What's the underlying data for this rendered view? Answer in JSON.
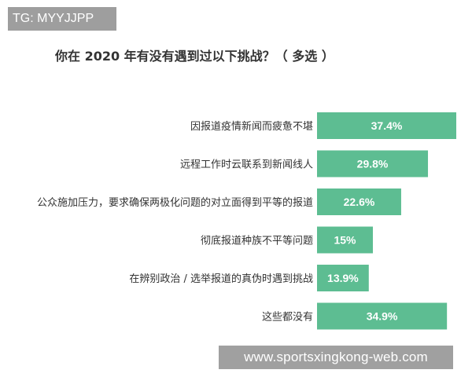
{
  "tag": "TG: MYYJJPP",
  "watermark": "www.sportsxingkong-web.com",
  "colors": {
    "bar": "#5dbd92",
    "label": "#333333",
    "value": "#ffffff"
  },
  "chart_data": {
    "type": "bar",
    "orientation": "horizontal",
    "title": "你在 2020 年有没有遇到过以下挑战？（ 多选 ）",
    "categories": [
      "因报道疫情新闻而疲惫不堪",
      "远程工作时云联系到新闻线人",
      "公众施加压力，要求确保两极化问题的对立面得到平等的报道",
      "彻底报道种族不平等问题",
      "在辨别政治 / 选举报道的真伪时遇到挑战",
      "这些都没有"
    ],
    "values": [
      37.4,
      29.8,
      22.6,
      15,
      13.9,
      34.9
    ],
    "value_labels": [
      "37.4%",
      "29.8%",
      "22.6%",
      "15%",
      "13.9%",
      "34.9%"
    ],
    "xlim": [
      0,
      37.4
    ],
    "grid": false,
    "legend": "none"
  }
}
